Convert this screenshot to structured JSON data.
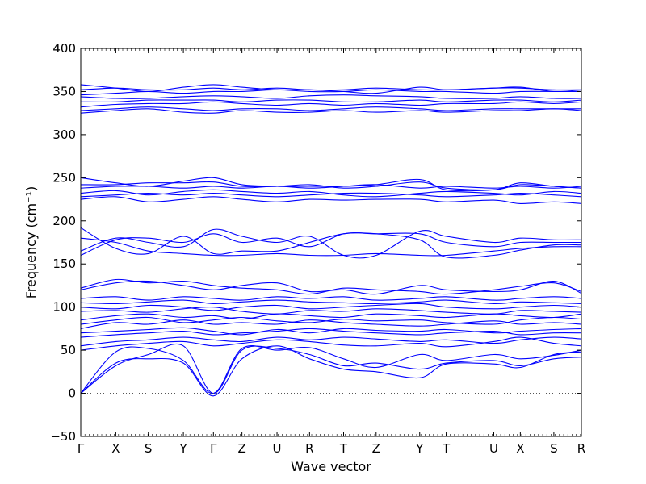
{
  "chart_data": {
    "type": "line",
    "title": "",
    "xlabel": "Wave vector",
    "ylabel": "Frequency (cm⁻¹)",
    "ylim": [
      -50,
      400
    ],
    "yticks": [
      -50,
      0,
      50,
      100,
      150,
      200,
      250,
      300,
      350,
      400
    ],
    "grid": false,
    "line_color": "#0000ff",
    "zero_line": {
      "y": 0,
      "style": "dotted",
      "color": "#555555"
    },
    "kpoints": [
      {
        "label": "Γ",
        "x": 0.0
      },
      {
        "label": "X",
        "x": 0.07
      },
      {
        "label": "S",
        "x": 0.135
      },
      {
        "label": "Y",
        "x": 0.205
      },
      {
        "label": "Γ",
        "x": 0.265
      },
      {
        "label": "Z",
        "x": 0.322
      },
      {
        "label": "U",
        "x": 0.392
      },
      {
        "label": "R",
        "x": 0.457
      },
      {
        "label": "T",
        "x": 0.525
      },
      {
        "label": "Z",
        "x": 0.59
      },
      {
        "label": "Y",
        "x": 0.677
      },
      {
        "label": "T",
        "x": 0.73
      },
      {
        "label": "U",
        "x": 0.825
      },
      {
        "label": "X",
        "x": 0.878
      },
      {
        "label": "S",
        "x": 0.945
      },
      {
        "label": "R",
        "x": 1.0
      }
    ],
    "series": [
      {
        "values": [
          0,
          32,
          45,
          55,
          0,
          50,
          52,
          45,
          32,
          35,
          28,
          35,
          38,
          32,
          40,
          42
        ]
      },
      {
        "values": [
          0,
          35,
          40,
          35,
          -3,
          40,
          55,
          40,
          28,
          25,
          18,
          34,
          34,
          30,
          45,
          48
        ]
      },
      {
        "values": [
          0,
          48,
          52,
          38,
          0,
          52,
          50,
          53,
          40,
          30,
          45,
          38,
          45,
          40,
          44,
          50
        ]
      },
      {
        "values": [
          50,
          55,
          58,
          60,
          55,
          58,
          62,
          60,
          56,
          55,
          58,
          54,
          60,
          65,
          58,
          55
        ]
      },
      {
        "values": [
          55,
          60,
          62,
          65,
          62,
          60,
          65,
          62,
          65,
          63,
          60,
          62,
          58,
          62,
          65,
          63
        ]
      },
      {
        "values": [
          65,
          68,
          70,
          72,
          68,
          70,
          72,
          75,
          72,
          70,
          68,
          70,
          72,
          68,
          70,
          70
        ]
      },
      {
        "values": [
          70,
          72,
          74,
          76,
          72,
          68,
          74,
          70,
          75,
          73,
          72,
          74,
          70,
          72,
          74,
          75
        ]
      },
      {
        "values": [
          75,
          82,
          80,
          85,
          80,
          82,
          80,
          85,
          82,
          80,
          78,
          80,
          84,
          80,
          82,
          80
        ]
      },
      {
        "values": [
          80,
          85,
          88,
          82,
          85,
          88,
          84,
          82,
          86,
          84,
          85,
          82,
          80,
          85,
          88,
          86
        ]
      },
      {
        "values": [
          85,
          90,
          92,
          88,
          90,
          86,
          92,
          90,
          88,
          92,
          90,
          88,
          92,
          90,
          88,
          92
        ]
      },
      {
        "values": [
          95,
          96,
          94,
          98,
          100,
          95,
          92,
          96,
          95,
          98,
          96,
          94,
          92,
          96,
          95,
          94
        ]
      },
      {
        "values": [
          100,
          98,
          102,
          100,
          96,
          100,
          102,
          98,
          100,
          102,
          104,
          100,
          98,
          100,
          102,
          100
        ]
      },
      {
        "values": [
          105,
          104,
          106,
          108,
          104,
          106,
          108,
          106,
          105,
          104,
          106,
          108,
          104,
          106,
          105,
          104
        ]
      },
      {
        "values": [
          110,
          112,
          108,
          112,
          110,
          108,
          112,
          110,
          112,
          108,
          110,
          112,
          108,
          110,
          112,
          110
        ]
      },
      {
        "values": [
          120,
          128,
          130,
          125,
          120,
          125,
          128,
          118,
          120,
          115,
          125,
          120,
          118,
          120,
          130,
          116
        ]
      },
      {
        "values": [
          122,
          132,
          128,
          130,
          125,
          122,
          120,
          115,
          122,
          120,
          118,
          115,
          120,
          124,
          128,
          118
        ]
      },
      {
        "values": [
          160,
          178,
          180,
          175,
          185,
          175,
          180,
          170,
          185,
          185,
          185,
          175,
          170,
          175,
          175,
          175
        ]
      },
      {
        "values": [
          165,
          180,
          175,
          170,
          190,
          182,
          175,
          182,
          160,
          160,
          188,
          182,
          175,
          180,
          178,
          178
        ]
      },
      {
        "values": [
          180,
          175,
          165,
          162,
          160,
          160,
          162,
          160,
          160,
          162,
          160,
          160,
          165,
          168,
          170,
          170
        ]
      },
      {
        "values": [
          192,
          168,
          162,
          182,
          162,
          165,
          165,
          175,
          185,
          185,
          178,
          158,
          160,
          166,
          172,
          172
        ]
      },
      {
        "values": [
          225,
          228,
          222,
          225,
          228,
          225,
          222,
          225,
          224,
          225,
          225,
          222,
          224,
          220,
          222,
          220
        ]
      },
      {
        "values": [
          228,
          230,
          232,
          230,
          232,
          230,
          228,
          230,
          232,
          232,
          230,
          228,
          230,
          232,
          230,
          228
        ]
      },
      {
        "values": [
          232,
          235,
          230,
          234,
          236,
          234,
          232,
          234,
          230,
          228,
          232,
          234,
          232,
          230,
          234,
          232
        ]
      },
      {
        "values": [
          238,
          240,
          240,
          238,
          240,
          238,
          240,
          238,
          240,
          242,
          238,
          240,
          238,
          240,
          238,
          240
        ]
      },
      {
        "values": [
          242,
          242,
          244,
          244,
          245,
          240,
          240,
          242,
          238,
          240,
          245,
          238,
          236,
          242,
          240,
          238
        ]
      },
      {
        "values": [
          250,
          244,
          240,
          246,
          250,
          242,
          240,
          240,
          240,
          242,
          248,
          236,
          236,
          244,
          240,
          238
        ]
      },
      {
        "values": [
          325,
          328,
          330,
          326,
          325,
          328,
          326,
          326,
          328,
          326,
          328,
          326,
          328,
          328,
          330,
          328
        ]
      },
      {
        "values": [
          328,
          330,
          332,
          330,
          328,
          330,
          330,
          328,
          330,
          332,
          330,
          328,
          330,
          330,
          330,
          330
        ]
      },
      {
        "values": [
          332,
          335,
          336,
          336,
          338,
          336,
          334,
          336,
          334,
          336,
          334,
          336,
          336,
          338,
          336,
          338
        ]
      },
      {
        "values": [
          338,
          338,
          340,
          340,
          340,
          338,
          340,
          340,
          338,
          338,
          340,
          338,
          340,
          340,
          338,
          340
        ]
      },
      {
        "values": [
          344,
          342,
          342,
          344,
          345,
          344,
          342,
          345,
          346,
          345,
          344,
          342,
          342,
          344,
          342,
          342
        ]
      },
      {
        "values": [
          346,
          348,
          350,
          348,
          350,
          350,
          352,
          350,
          350,
          352,
          350,
          350,
          348,
          350,
          350,
          350
        ]
      },
      {
        "values": [
          352,
          354,
          352,
          352,
          354,
          352,
          354,
          352,
          352,
          354,
          352,
          352,
          354,
          354,
          352,
          352
        ]
      },
      {
        "values": [
          358,
          354,
          350,
          355,
          358,
          355,
          352,
          352,
          350,
          348,
          355,
          352,
          354,
          355,
          350,
          352
        ]
      }
    ]
  }
}
